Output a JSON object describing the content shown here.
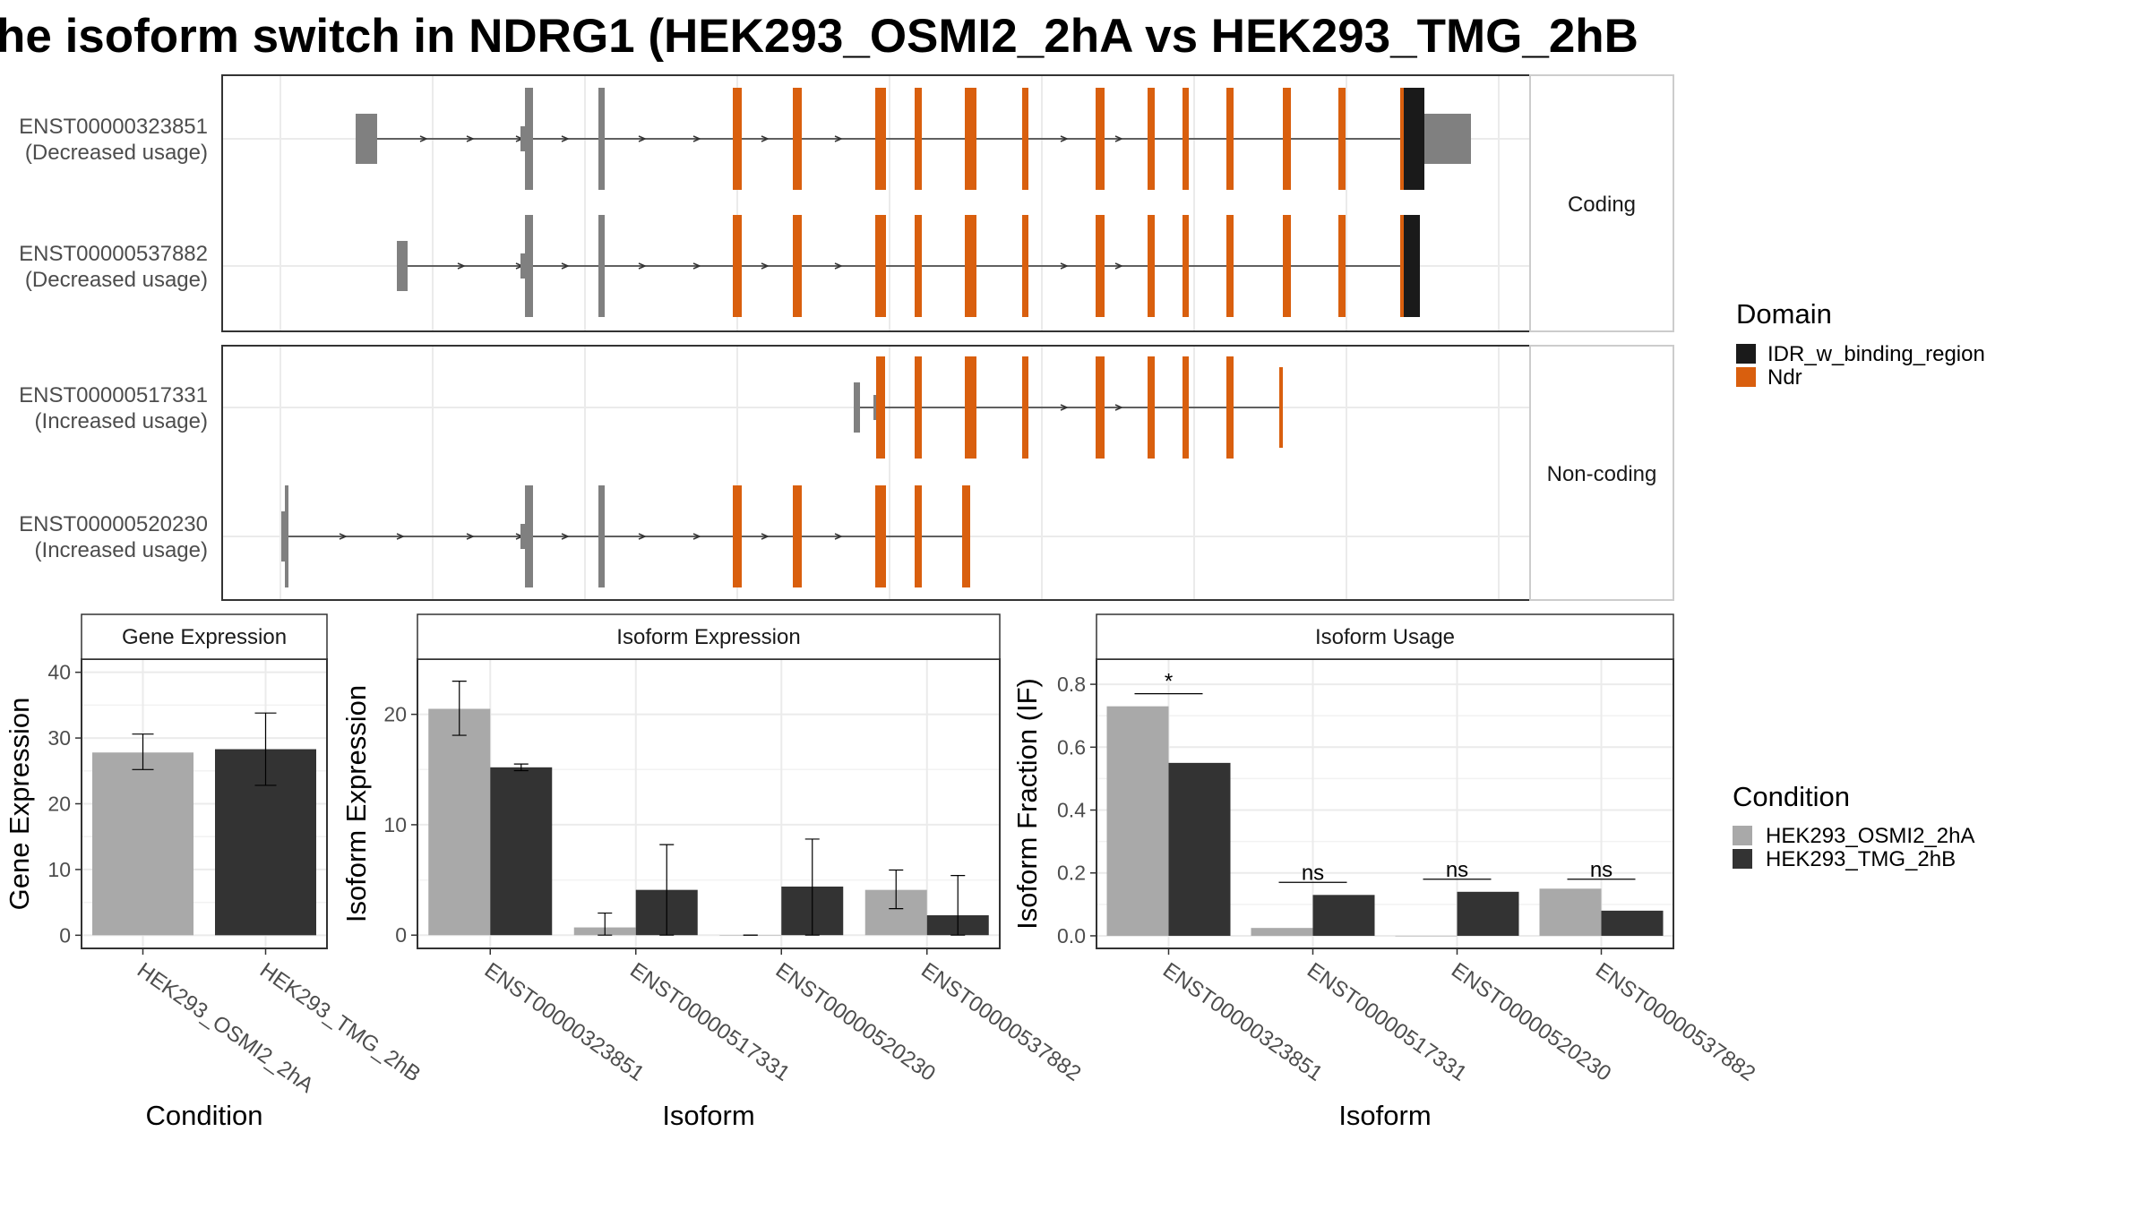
{
  "title": "he isoform switch in NDRG1 (HEK293_OSMI2_2hA vs HEK293_TMG_2hB",
  "colors": {
    "ndr": "#D95F0E",
    "idr": "#1A1A1A",
    "exon": "#808080",
    "cond_a": "#A9A9A9",
    "cond_b": "#333333"
  },
  "transcript_panel": {
    "facets": [
      "Coding",
      "Non-coding"
    ],
    "transcripts": [
      {
        "id": "ENST00000323851",
        "note": "(Decreased usage)",
        "facet": "Coding"
      },
      {
        "id": "ENST00000537882",
        "note": "(Decreased usage)",
        "facet": "Coding"
      },
      {
        "id": "ENST00000517331",
        "note": "(Increased usage)",
        "facet": "Non-coding"
      },
      {
        "id": "ENST00000520230",
        "note": "(Increased usage)",
        "facet": "Non-coding"
      }
    ],
    "domain_legend": {
      "title": "Domain",
      "items": [
        "IDR_w_binding_region",
        "Ndr"
      ]
    }
  },
  "condition_legend": {
    "title": "Condition",
    "items": [
      "HEK293_OSMI2_2hA",
      "HEK293_TMG_2hB"
    ]
  },
  "chart_data": [
    {
      "type": "bar",
      "strip": "Gene Expression",
      "xlabel": "Condition",
      "ylabel": "Gene Expression",
      "ylim": [
        -2,
        42
      ],
      "yticks": [
        0,
        10,
        20,
        30,
        40
      ],
      "categories": [
        "HEK293_OSMI2_2hA",
        "HEK293_TMG_2hB"
      ],
      "values": [
        27.8,
        28.3
      ],
      "err_low": [
        25.2,
        22.8
      ],
      "err_high": [
        30.6,
        33.8
      ]
    },
    {
      "type": "bar",
      "strip": "Isoform Expression",
      "xlabel": "Isoform",
      "ylabel": "Isoform Expression",
      "ylim": [
        -1.2,
        25
      ],
      "yticks": [
        0,
        10,
        20
      ],
      "categories": [
        "ENST00000323851",
        "ENST00000517331",
        "ENST00000520230",
        "ENST00000537882"
      ],
      "series": [
        {
          "name": "HEK293_OSMI2_2hA",
          "values": [
            20.5,
            0.7,
            0.0,
            4.1
          ],
          "err_low": [
            18.1,
            0.0,
            0.0,
            2.4
          ],
          "err_high": [
            23.0,
            2.0,
            0.0,
            5.9
          ]
        },
        {
          "name": "HEK293_TMG_2hB",
          "values": [
            15.2,
            4.1,
            4.4,
            1.8
          ],
          "err_low": [
            14.9,
            0.0,
            0.0,
            0.0
          ],
          "err_high": [
            15.5,
            8.2,
            8.7,
            5.4
          ]
        }
      ]
    },
    {
      "type": "bar",
      "strip": "Isoform Usage",
      "xlabel": "Isoform",
      "ylabel": "Isoform Fraction (IF)",
      "ylim": [
        -0.04,
        0.88
      ],
      "yticks": [
        0.0,
        0.2,
        0.4,
        0.6,
        0.8
      ],
      "ytick_labels": [
        "0.0",
        "0.2",
        "0.4",
        "0.6",
        "0.8"
      ],
      "categories": [
        "ENST00000323851",
        "ENST00000517331",
        "ENST00000520230",
        "ENST00000537882"
      ],
      "series": [
        {
          "name": "HEK293_OSMI2_2hA",
          "values": [
            0.73,
            0.025,
            0.0,
            0.15
          ]
        },
        {
          "name": "HEK293_TMG_2hB",
          "values": [
            0.55,
            0.13,
            0.14,
            0.08
          ]
        }
      ],
      "significance": [
        "*",
        "ns",
        "ns",
        "ns"
      ],
      "sig_line_y": [
        0.77,
        0.17,
        0.18,
        0.18
      ]
    }
  ]
}
